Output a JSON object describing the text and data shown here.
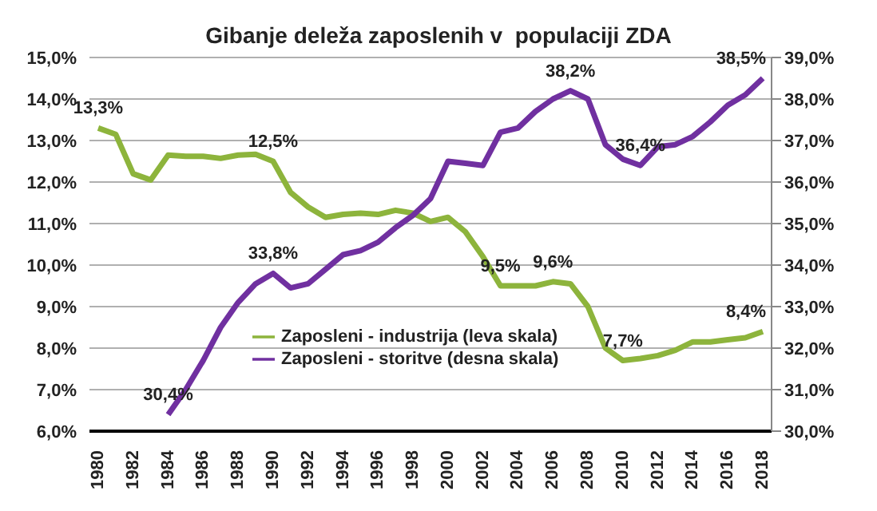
{
  "chart_data": {
    "type": "line",
    "title": "Gibanje deleža zaposlenih v  populaciji ZDA",
    "x": [
      1980,
      1981,
      1982,
      1983,
      1984,
      1985,
      1986,
      1987,
      1988,
      1989,
      1990,
      1991,
      1992,
      1993,
      1994,
      1995,
      1996,
      1997,
      1998,
      1999,
      2000,
      2001,
      2002,
      2003,
      2004,
      2005,
      2006,
      2007,
      2008,
      2009,
      2010,
      2011,
      2012,
      2013,
      2014,
      2015,
      2016,
      2017,
      2018
    ],
    "xlim": [
      1979.5,
      2018.5
    ],
    "xticks": [
      1980,
      1982,
      1984,
      1986,
      1988,
      1990,
      1992,
      1994,
      1996,
      1998,
      2000,
      2002,
      2004,
      2006,
      2008,
      2010,
      2012,
      2014,
      2016,
      2018
    ],
    "ylim": [
      6,
      15
    ],
    "yticks": [
      {
        "value": 6,
        "label": "6,0%"
      },
      {
        "value": 7,
        "label": "7,0%"
      },
      {
        "value": 8,
        "label": "8,0%"
      },
      {
        "value": 9,
        "label": "9,0%"
      },
      {
        "value": 10,
        "label": "10,0%"
      },
      {
        "value": 11,
        "label": "11,0%"
      },
      {
        "value": 12,
        "label": "12,0%"
      },
      {
        "value": 13,
        "label": "13,0%"
      },
      {
        "value": 14,
        "label": "14,0%"
      },
      {
        "value": 15,
        "label": "15,0%"
      }
    ],
    "y2lim": [
      30,
      39
    ],
    "y2ticks": [
      {
        "value": 30,
        "label": "30,0%"
      },
      {
        "value": 31,
        "label": "31,0%"
      },
      {
        "value": 32,
        "label": "32,0%"
      },
      {
        "value": 33,
        "label": "33,0%"
      },
      {
        "value": 34,
        "label": "34,0%"
      },
      {
        "value": 35,
        "label": "35,0%"
      },
      {
        "value": 36,
        "label": "36,0%"
      },
      {
        "value": 37,
        "label": "37,0%"
      },
      {
        "value": 38,
        "label": "38,0%"
      },
      {
        "value": 39,
        "label": "39,0%"
      }
    ],
    "grid": "y",
    "legend": "bottom",
    "marker": "none",
    "line_style": "solid",
    "series": [
      {
        "name": "Zaposleni - industrija (leva skala)",
        "color": "#8db43c",
        "values": [
          13.3,
          13.15,
          12.2,
          12.05,
          12.65,
          12.62,
          12.62,
          12.57,
          12.65,
          12.67,
          12.5,
          11.75,
          11.4,
          11.15,
          11.22,
          11.25,
          11.22,
          11.32,
          11.25,
          11.05,
          11.15,
          10.8,
          10.2,
          9.5,
          9.5,
          9.5,
          9.6,
          9.55,
          9.0,
          8.0,
          7.7,
          7.75,
          7.82,
          7.95,
          8.15,
          8.15,
          8.2,
          8.25,
          8.4
        ],
        "value_labels": [
          "13,3%",
          null,
          null,
          null,
          null,
          null,
          null,
          null,
          null,
          null,
          "12,5%",
          null,
          null,
          null,
          null,
          null,
          null,
          null,
          null,
          null,
          null,
          null,
          null,
          "9,5%",
          null,
          null,
          "9,6%",
          null,
          null,
          null,
          "7,7%",
          null,
          null,
          null,
          null,
          null,
          null,
          null,
          "8,4%"
        ]
      },
      {
        "name": "Zaposleni - storitve (desna skala)",
        "color": "#7030a0",
        "axis": "y2",
        "values": [
          null,
          null,
          null,
          null,
          30.4,
          31.0,
          31.7,
          32.5,
          33.1,
          33.55,
          33.8,
          33.45,
          33.55,
          33.9,
          34.25,
          34.35,
          34.55,
          34.9,
          35.2,
          35.6,
          36.5,
          36.45,
          36.4,
          37.2,
          37.3,
          37.7,
          38.0,
          38.2,
          38.0,
          36.9,
          36.55,
          36.4,
          36.85,
          36.9,
          37.1,
          37.45,
          37.85,
          38.1,
          38.5
        ],
        "value_labels": [
          null,
          null,
          null,
          null,
          "30,4%",
          null,
          null,
          null,
          null,
          null,
          "33,8%",
          null,
          null,
          null,
          null,
          null,
          null,
          null,
          null,
          null,
          null,
          null,
          null,
          null,
          null,
          null,
          null,
          "38,2%",
          null,
          null,
          null,
          "36,4%",
          null,
          null,
          null,
          null,
          null,
          null,
          "38,5%"
        ]
      }
    ]
  }
}
